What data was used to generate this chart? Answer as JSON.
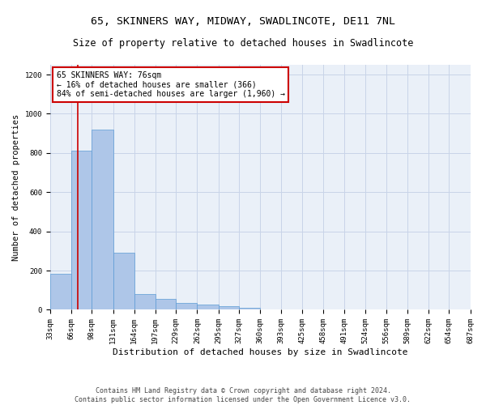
{
  "title": "65, SKINNERS WAY, MIDWAY, SWADLINCOTE, DE11 7NL",
  "subtitle": "Size of property relative to detached houses in Swadlincote",
  "xlabel": "Distribution of detached houses by size in Swadlincote",
  "ylabel": "Number of detached properties",
  "footer_line1": "Contains HM Land Registry data © Crown copyright and database right 2024.",
  "footer_line2": "Contains public sector information licensed under the Open Government Licence v3.0.",
  "annotation_line1": "65 SKINNERS WAY: 76sqm",
  "annotation_line2": "← 16% of detached houses are smaller (366)",
  "annotation_line3": "84% of semi-detached houses are larger (1,960) →",
  "property_size": 76,
  "bin_edges": [
    33,
    66,
    98,
    131,
    164,
    197,
    229,
    262,
    295,
    327,
    360,
    393,
    425,
    458,
    491,
    524,
    556,
    589,
    622,
    654,
    687
  ],
  "bar_heights": [
    185,
    810,
    920,
    290,
    80,
    55,
    35,
    25,
    18,
    12,
    0,
    0,
    0,
    0,
    0,
    0,
    0,
    0,
    0,
    0
  ],
  "bar_color": "#aec6e8",
  "bar_edge_color": "#5b9bd5",
  "red_line_color": "#cc0000",
  "annotation_box_edge": "#cc0000",
  "background_color": "#ffffff",
  "plot_bg_color": "#eaf0f8",
  "grid_color": "#c8d4e8",
  "ylim": [
    0,
    1250
  ],
  "yticks": [
    0,
    200,
    400,
    600,
    800,
    1000,
    1200
  ],
  "title_fontsize": 9.5,
  "subtitle_fontsize": 8.5,
  "xlabel_fontsize": 8,
  "ylabel_fontsize": 7.5,
  "tick_fontsize": 6.5,
  "annotation_fontsize": 7,
  "footer_fontsize": 6
}
